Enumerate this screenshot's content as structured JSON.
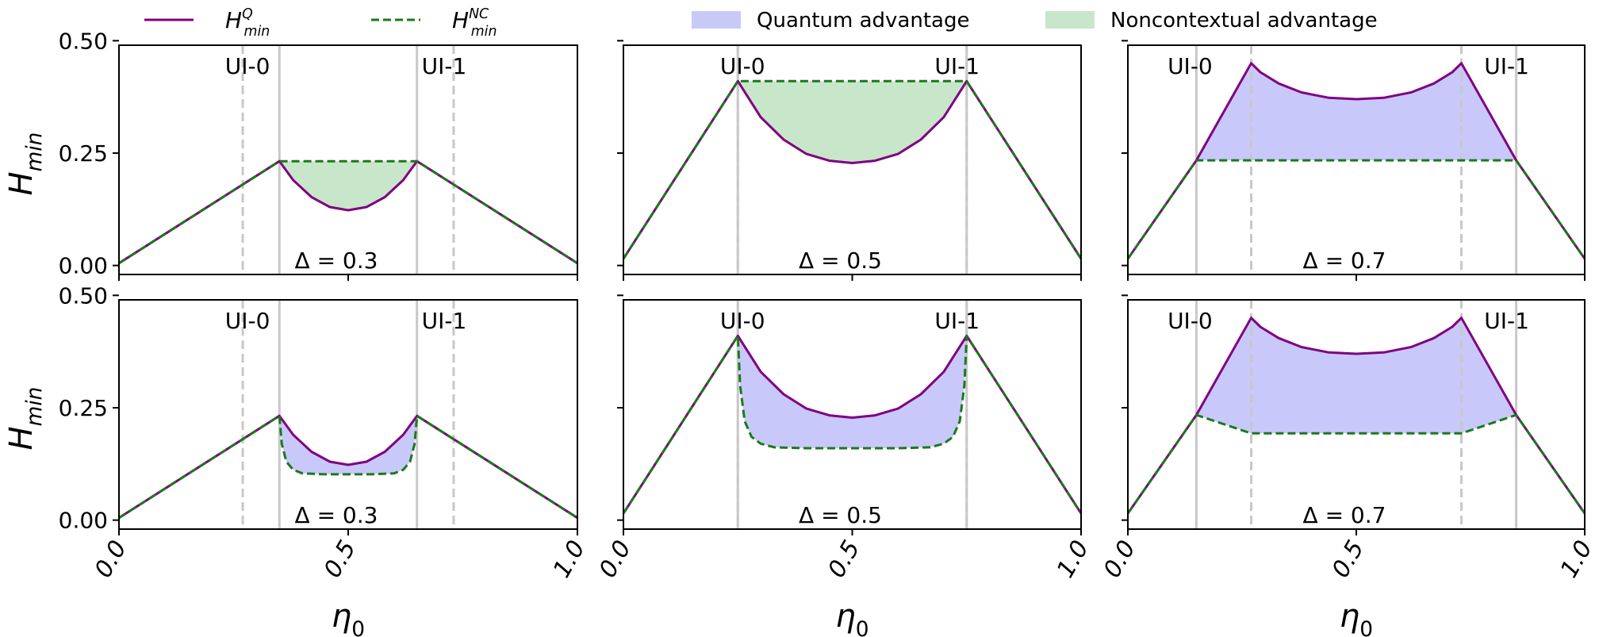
{
  "legend": {
    "items": [
      {
        "main": "H",
        "sup": "Q",
        "sub": "min",
        "style": "solid",
        "color": "#800080"
      },
      {
        "main": "H",
        "sup": "NC",
        "sub": "min",
        "style": "dashed",
        "color": "#1a7a1a"
      },
      {
        "label": "Quantum advantage",
        "style": "fill",
        "color": "#c9c9f8"
      },
      {
        "label": "Noncontextual advantage",
        "style": "fill",
        "color": "#c8e6c9"
      }
    ]
  },
  "colors": {
    "hq": "#800080",
    "hnc": "#1a7a1a",
    "quantum_fill": "#c8c8fa",
    "nc_fill": "#c8e6c9",
    "ui_solid": "#c8c8c8",
    "ui_dashed": "#c8c8c8"
  },
  "axis_text": {
    "ylabel_main": "H",
    "ylabel_sub": "min",
    "xlabel_main": "η",
    "xlabel_sub": "0",
    "ui0": "UI-0",
    "ui1": "UI-1",
    "yticks": [
      "0.00",
      "0.25",
      "0.50"
    ],
    "xticks": [
      "0.0",
      "0.5",
      "1.0"
    ]
  },
  "chart_data": [
    {
      "type": "line",
      "row": 0,
      "col": 0,
      "annotation": "Δ = 0.3",
      "xlim": [
        0,
        1
      ],
      "ylim": [
        0,
        0.5
      ],
      "ui_solid": [
        0.35,
        0.65
      ],
      "ui_dashed": [
        0.27,
        0.73
      ],
      "fill": "nc",
      "hq": [
        [
          0.0,
          0.005
        ],
        [
          0.35,
          0.232
        ],
        [
          0.38,
          0.19
        ],
        [
          0.42,
          0.152
        ],
        [
          0.46,
          0.13
        ],
        [
          0.5,
          0.123
        ],
        [
          0.54,
          0.13
        ],
        [
          0.58,
          0.152
        ],
        [
          0.62,
          0.19
        ],
        [
          0.65,
          0.232
        ],
        [
          1.0,
          0.005
        ]
      ],
      "hnc": [
        [
          0.0,
          0.005
        ],
        [
          0.35,
          0.232
        ],
        [
          0.65,
          0.232
        ],
        [
          1.0,
          0.005
        ]
      ]
    },
    {
      "type": "line",
      "row": 0,
      "col": 1,
      "annotation": "Δ = 0.5",
      "xlim": [
        0,
        1
      ],
      "ylim": [
        0,
        0.5
      ],
      "ui_solid": [
        0.25,
        0.75
      ],
      "ui_dashed": [
        0.25,
        0.75
      ],
      "fill": "nc",
      "hq": [
        [
          0.0,
          0.015
        ],
        [
          0.25,
          0.41
        ],
        [
          0.3,
          0.33
        ],
        [
          0.35,
          0.28
        ],
        [
          0.4,
          0.248
        ],
        [
          0.45,
          0.233
        ],
        [
          0.5,
          0.228
        ],
        [
          0.55,
          0.233
        ],
        [
          0.6,
          0.248
        ],
        [
          0.65,
          0.28
        ],
        [
          0.7,
          0.33
        ],
        [
          0.75,
          0.41
        ],
        [
          1.0,
          0.015
        ]
      ],
      "hnc": [
        [
          0.0,
          0.015
        ],
        [
          0.25,
          0.41
        ],
        [
          0.75,
          0.41
        ],
        [
          1.0,
          0.015
        ]
      ]
    },
    {
      "type": "line",
      "row": 0,
      "col": 2,
      "annotation": "Δ = 0.7",
      "xlim": [
        0,
        1
      ],
      "ylim": [
        0,
        0.5
      ],
      "ui_solid": [
        0.15,
        0.85
      ],
      "ui_dashed": [
        0.27,
        0.73
      ],
      "fill": "quantum",
      "hq": [
        [
          0.0,
          0.015
        ],
        [
          0.15,
          0.234
        ],
        [
          0.27,
          0.45
        ],
        [
          0.29,
          0.43
        ],
        [
          0.33,
          0.405
        ],
        [
          0.38,
          0.385
        ],
        [
          0.44,
          0.373
        ],
        [
          0.5,
          0.37
        ],
        [
          0.56,
          0.373
        ],
        [
          0.62,
          0.385
        ],
        [
          0.67,
          0.405
        ],
        [
          0.71,
          0.43
        ],
        [
          0.73,
          0.45
        ],
        [
          0.85,
          0.234
        ],
        [
          1.0,
          0.015
        ]
      ],
      "hnc": [
        [
          0.0,
          0.015
        ],
        [
          0.15,
          0.234
        ],
        [
          0.85,
          0.234
        ],
        [
          1.0,
          0.015
        ]
      ]
    },
    {
      "type": "line",
      "row": 1,
      "col": 0,
      "annotation": "Δ = 0.3",
      "xlim": [
        0,
        1
      ],
      "ylim": [
        0,
        0.5
      ],
      "ui_solid": [
        0.35,
        0.65
      ],
      "ui_dashed": [
        0.27,
        0.73
      ],
      "fill": "quantum",
      "hq": [
        [
          0.0,
          0.005
        ],
        [
          0.35,
          0.232
        ],
        [
          0.38,
          0.19
        ],
        [
          0.42,
          0.152
        ],
        [
          0.46,
          0.13
        ],
        [
          0.5,
          0.123
        ],
        [
          0.54,
          0.13
        ],
        [
          0.58,
          0.152
        ],
        [
          0.62,
          0.19
        ],
        [
          0.65,
          0.232
        ],
        [
          1.0,
          0.005
        ]
      ],
      "hnc": [
        [
          0.0,
          0.005
        ],
        [
          0.35,
          0.232
        ],
        [
          0.355,
          0.17
        ],
        [
          0.365,
          0.13
        ],
        [
          0.38,
          0.112
        ],
        [
          0.4,
          0.104
        ],
        [
          0.45,
          0.102
        ],
        [
          0.55,
          0.102
        ],
        [
          0.6,
          0.104
        ],
        [
          0.62,
          0.112
        ],
        [
          0.635,
          0.13
        ],
        [
          0.645,
          0.17
        ],
        [
          0.65,
          0.232
        ],
        [
          1.0,
          0.005
        ]
      ]
    },
    {
      "type": "line",
      "row": 1,
      "col": 1,
      "annotation": "Δ = 0.5",
      "xlim": [
        0,
        1
      ],
      "ylim": [
        0,
        0.5
      ],
      "ui_solid": [
        0.25,
        0.75
      ],
      "ui_dashed": [
        0.25,
        0.75
      ],
      "fill": "quantum",
      "hq": [
        [
          0.0,
          0.015
        ],
        [
          0.25,
          0.41
        ],
        [
          0.3,
          0.33
        ],
        [
          0.35,
          0.28
        ],
        [
          0.4,
          0.248
        ],
        [
          0.45,
          0.233
        ],
        [
          0.5,
          0.228
        ],
        [
          0.55,
          0.233
        ],
        [
          0.6,
          0.248
        ],
        [
          0.65,
          0.28
        ],
        [
          0.7,
          0.33
        ],
        [
          0.75,
          0.41
        ],
        [
          1.0,
          0.015
        ]
      ],
      "hnc": [
        [
          0.0,
          0.015
        ],
        [
          0.25,
          0.41
        ],
        [
          0.255,
          0.3
        ],
        [
          0.265,
          0.22
        ],
        [
          0.28,
          0.185
        ],
        [
          0.3,
          0.17
        ],
        [
          0.33,
          0.162
        ],
        [
          0.4,
          0.16
        ],
        [
          0.6,
          0.16
        ],
        [
          0.67,
          0.162
        ],
        [
          0.7,
          0.17
        ],
        [
          0.72,
          0.185
        ],
        [
          0.735,
          0.22
        ],
        [
          0.745,
          0.3
        ],
        [
          0.75,
          0.41
        ],
        [
          1.0,
          0.015
        ]
      ]
    },
    {
      "type": "line",
      "row": 1,
      "col": 2,
      "annotation": "Δ = 0.7",
      "xlim": [
        0,
        1
      ],
      "ylim": [
        0,
        0.5
      ],
      "ui_solid": [
        0.15,
        0.85
      ],
      "ui_dashed": [
        0.27,
        0.73
      ],
      "fill": "quantum",
      "hq": [
        [
          0.0,
          0.015
        ],
        [
          0.15,
          0.234
        ],
        [
          0.27,
          0.45
        ],
        [
          0.29,
          0.43
        ],
        [
          0.33,
          0.405
        ],
        [
          0.38,
          0.385
        ],
        [
          0.44,
          0.373
        ],
        [
          0.5,
          0.37
        ],
        [
          0.56,
          0.373
        ],
        [
          0.62,
          0.385
        ],
        [
          0.67,
          0.405
        ],
        [
          0.71,
          0.43
        ],
        [
          0.73,
          0.45
        ],
        [
          0.85,
          0.234
        ],
        [
          1.0,
          0.015
        ]
      ],
      "hnc": [
        [
          0.0,
          0.015
        ],
        [
          0.15,
          0.234
        ],
        [
          0.27,
          0.193
        ],
        [
          0.73,
          0.193
        ],
        [
          0.85,
          0.234
        ],
        [
          1.0,
          0.015
        ]
      ]
    }
  ]
}
